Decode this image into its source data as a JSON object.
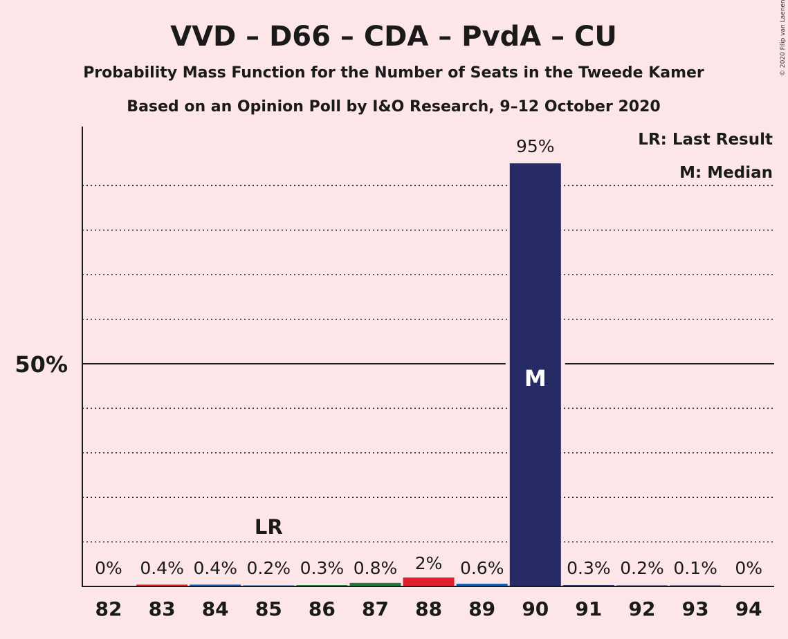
{
  "title": "VVD – D66 – CDA – PvdA – CU",
  "subtitle": "Probability Mass Function for the Number of Seats in the Tweede Kamer",
  "subtitle2": "Based on an Opinion Poll by I&O Research, 9–12 October 2020",
  "copyright": "© 2020 Filip van Laenen",
  "legend": {
    "last_result": "LR: Last Result",
    "median": "M: Median"
  },
  "chart_data": {
    "type": "bar",
    "categories": [
      "82",
      "83",
      "84",
      "85",
      "86",
      "87",
      "88",
      "89",
      "90",
      "91",
      "92",
      "93",
      "94"
    ],
    "values": [
      0,
      0.4,
      0.4,
      0.2,
      0.3,
      0.8,
      2,
      0.6,
      95,
      0.3,
      0.2,
      0.1,
      0
    ],
    "labels": [
      "0%",
      "0.4%",
      "0.4%",
      "0.2%",
      "0.3%",
      "0.8%",
      "2%",
      "0.6%",
      "95%",
      "0.3%",
      "0.2%",
      "0.1%",
      "0%"
    ],
    "bar_colors": [
      "#e01e2e",
      "#e01e2e",
      "#0f5bb3",
      "#0f5bb3",
      "#1f7a3d",
      "#1f7a3d",
      "#e01e2e",
      "#0f5bb3",
      "#262b66",
      "#262b66",
      "#262b66",
      "#262b66",
      "#262b66"
    ],
    "ylim": [
      0,
      100
    ],
    "y_ticks": [
      50
    ],
    "y_tick_labels": [
      "50%"
    ],
    "gridlines": "dotted every 10%",
    "last_result_category": "85",
    "last_result_marker": "LR",
    "median_category": "90",
    "median_marker": "M",
    "legend_position": "top-right"
  }
}
